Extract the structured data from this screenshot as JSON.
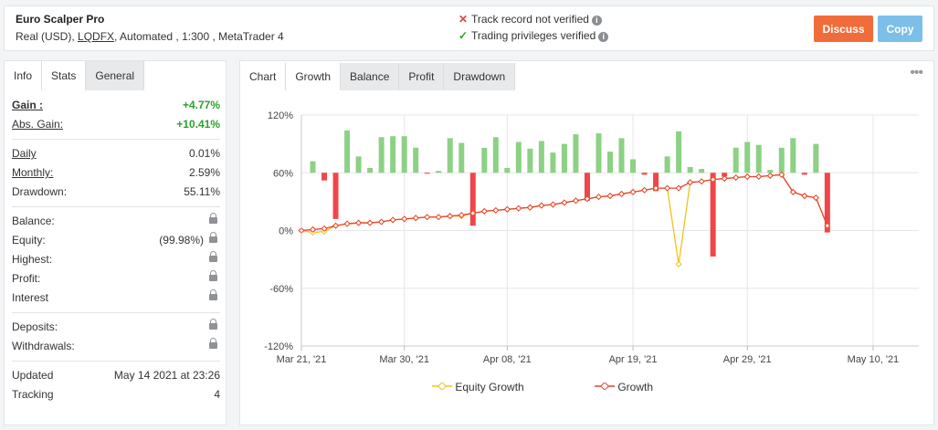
{
  "header": {
    "system_name": "Euro Scalper Pro",
    "account_type": "Real (USD),",
    "broker": "LQDFX",
    "details": ", Automated , 1:300 , MetaTrader 4",
    "track_record": "Track record not verified",
    "trading_privileges": "Trading privileges verified",
    "discuss_label": "Discuss",
    "copy_label": "Copy",
    "colors": {
      "discuss": "#f06c3a",
      "copy": "#7cbfe8",
      "verified": "#2ca02c",
      "not_verified": "#e04040"
    }
  },
  "left_tabs": [
    "Info",
    "Stats",
    "General"
  ],
  "stats": {
    "gain": {
      "label": "Gain :",
      "value": "+4.77%"
    },
    "abs_gain": {
      "label": "Abs. Gain:",
      "value": "+10.41%"
    },
    "daily": {
      "label": "Daily",
      "value": "0.01%"
    },
    "monthly": {
      "label": "Monthly:",
      "value": "2.59%"
    },
    "drawdown": {
      "label": "Drawdown:",
      "value": "55.11%"
    },
    "balance": {
      "label": "Balance:"
    },
    "equity": {
      "label": "Equity:",
      "value": "(99.98%)"
    },
    "highest": {
      "label": "Highest:"
    },
    "profit": {
      "label": "Profit:"
    },
    "interest": {
      "label": "Interest"
    },
    "deposits": {
      "label": "Deposits:"
    },
    "withdrawals": {
      "label": "Withdrawals:"
    },
    "updated": {
      "label": "Updated",
      "value": "May 14 2021 at 23:26"
    },
    "tracking": {
      "label": "Tracking",
      "value": "4"
    }
  },
  "chart_tabs": [
    "Chart",
    "Growth",
    "Balance",
    "Profit",
    "Drawdown"
  ],
  "chart_data": {
    "type": "line",
    "yticks": [
      "120%",
      "60%",
      "0%",
      "-60%",
      "-120%"
    ],
    "ylim": [
      -120,
      120
    ],
    "xlim": [
      0,
      54
    ],
    "xticks": [
      {
        "label": "Mar 21, '21",
        "x": 0
      },
      {
        "label": "Mar 30, '21",
        "x": 9
      },
      {
        "label": "Apr 08, '21",
        "x": 18
      },
      {
        "label": "Apr 19, '21",
        "x": 29
      },
      {
        "label": "Apr 29, '21",
        "x": 39
      },
      {
        "label": "May 10, '21",
        "x": 50
      }
    ],
    "bars": [
      [
        1,
        12
      ],
      [
        2,
        -8
      ],
      [
        3,
        -48
      ],
      [
        4,
        44
      ],
      [
        5,
        17
      ],
      [
        6,
        5
      ],
      [
        7,
        37
      ],
      [
        8,
        38
      ],
      [
        9,
        38
      ],
      [
        10,
        26
      ],
      [
        11,
        -1
      ],
      [
        12,
        2
      ],
      [
        13,
        36
      ],
      [
        14,
        31
      ],
      [
        15,
        -55
      ],
      [
        16,
        26
      ],
      [
        17,
        37
      ],
      [
        18,
        5
      ],
      [
        19,
        32
      ],
      [
        20,
        25
      ],
      [
        21,
        33
      ],
      [
        22,
        21
      ],
      [
        23,
        30
      ],
      [
        24,
        40
      ],
      [
        25,
        -29
      ],
      [
        26,
        41
      ],
      [
        27,
        22
      ],
      [
        28,
        36
      ],
      [
        29,
        14
      ],
      [
        30,
        -2
      ],
      [
        31,
        -19
      ],
      [
        32,
        17
      ],
      [
        33,
        43
      ],
      [
        34,
        6
      ],
      [
        35,
        4
      ],
      [
        36,
        -87
      ],
      [
        37,
        -4
      ],
      [
        38,
        26
      ],
      [
        39,
        32
      ],
      [
        40,
        29
      ],
      [
        41,
        3
      ],
      [
        42,
        26
      ],
      [
        43,
        36
      ],
      [
        44,
        -2
      ],
      [
        45,
        30
      ],
      [
        46,
        -62
      ]
    ],
    "series": [
      {
        "name": "Equity Growth",
        "color": "#f2c217",
        "values": [
          [
            0,
            0
          ],
          [
            1,
            -2
          ],
          [
            2,
            -1
          ],
          [
            3,
            5
          ],
          [
            4,
            7
          ],
          [
            5,
            8
          ],
          [
            6,
            8
          ],
          [
            7,
            9
          ],
          [
            8,
            11
          ],
          [
            9,
            12
          ],
          [
            10,
            13
          ],
          [
            11,
            14
          ],
          [
            12,
            14
          ],
          [
            13,
            15
          ],
          [
            14,
            15
          ],
          [
            15,
            18
          ],
          [
            16,
            20
          ],
          [
            17,
            21
          ],
          [
            18,
            22
          ],
          [
            19,
            23
          ],
          [
            20,
            24
          ],
          [
            21,
            26
          ],
          [
            22,
            27
          ],
          [
            23,
            29
          ],
          [
            24,
            31
          ],
          [
            25,
            33
          ],
          [
            26,
            35
          ],
          [
            27,
            36
          ],
          [
            28,
            38
          ],
          [
            29,
            40
          ],
          [
            30,
            42
          ],
          [
            31,
            44
          ],
          [
            32,
            44
          ],
          [
            33,
            -35
          ],
          [
            34,
            50
          ],
          [
            35,
            51
          ],
          [
            36,
            53
          ],
          [
            37,
            54
          ],
          [
            38,
            55
          ],
          [
            39,
            56
          ],
          [
            40,
            56
          ],
          [
            41,
            57
          ],
          [
            42,
            58
          ],
          [
            43,
            40
          ],
          [
            44,
            36
          ],
          [
            45,
            34
          ],
          [
            46,
            5
          ]
        ]
      },
      {
        "name": "Growth",
        "color": "#e8412e",
        "values": [
          [
            0,
            0
          ],
          [
            1,
            1
          ],
          [
            2,
            2
          ],
          [
            3,
            5
          ],
          [
            4,
            7
          ],
          [
            5,
            8
          ],
          [
            6,
            8
          ],
          [
            7,
            9
          ],
          [
            8,
            11
          ],
          [
            9,
            12
          ],
          [
            10,
            13
          ],
          [
            11,
            14
          ],
          [
            12,
            14
          ],
          [
            13,
            15
          ],
          [
            14,
            16
          ],
          [
            15,
            18
          ],
          [
            16,
            20
          ],
          [
            17,
            21
          ],
          [
            18,
            22
          ],
          [
            19,
            23
          ],
          [
            20,
            24
          ],
          [
            21,
            26
          ],
          [
            22,
            27
          ],
          [
            23,
            29
          ],
          [
            24,
            31
          ],
          [
            25,
            33
          ],
          [
            26,
            35
          ],
          [
            27,
            36
          ],
          [
            28,
            38
          ],
          [
            29,
            40
          ],
          [
            30,
            42
          ],
          [
            31,
            44
          ],
          [
            32,
            44
          ],
          [
            33,
            44
          ],
          [
            34,
            50
          ],
          [
            35,
            51
          ],
          [
            36,
            53
          ],
          [
            37,
            54
          ],
          [
            38,
            55
          ],
          [
            39,
            56
          ],
          [
            40,
            56
          ],
          [
            41,
            57
          ],
          [
            42,
            58
          ],
          [
            43,
            40
          ],
          [
            44,
            36
          ],
          [
            45,
            34
          ],
          [
            46,
            5
          ]
        ]
      }
    ],
    "bar_colors": {
      "positive": "#8cd184",
      "negative": "#f0454a"
    },
    "grid": true,
    "legend": "bottom"
  }
}
